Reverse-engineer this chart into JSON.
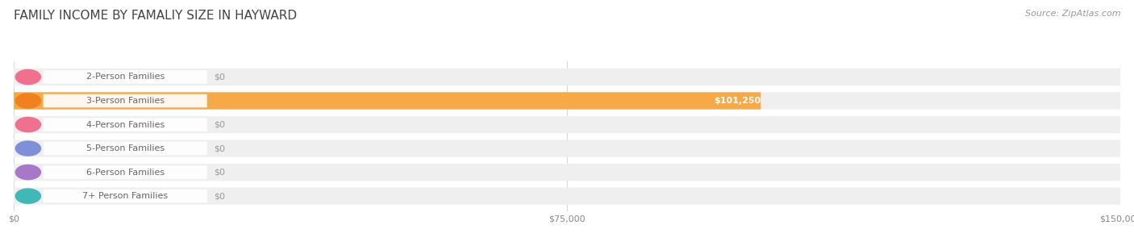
{
  "title": "FAMILY INCOME BY FAMALIY SIZE IN HAYWARD",
  "source": "Source: ZipAtlas.com",
  "categories": [
    "2-Person Families",
    "3-Person Families",
    "4-Person Families",
    "5-Person Families",
    "6-Person Families",
    "7+ Person Families"
  ],
  "values": [
    0,
    101250,
    0,
    0,
    0,
    0
  ],
  "bar_colors": [
    "#f7afc0",
    "#f5a947",
    "#f7afc0",
    "#b0bff0",
    "#ccb0e0",
    "#85d4d4"
  ],
  "icon_colors": [
    "#f07090",
    "#f08020",
    "#f07090",
    "#8090d8",
    "#a878c8",
    "#40b8b8"
  ],
  "xlim": [
    0,
    150000
  ],
  "xticks": [
    0,
    75000,
    150000
  ],
  "xtick_labels": [
    "$0",
    "$75,000",
    "$150,000"
  ],
  "background_color": "#ffffff",
  "bar_bg_color": "#efefef",
  "bar_bg_shadow_color": "#e0e0e0",
  "title_fontsize": 11,
  "source_fontsize": 8,
  "category_fontsize": 8,
  "value_fontsize": 8,
  "value_label_color": "#ffffff",
  "zero_label_color": "#999999",
  "category_label_color": "#666666",
  "grid_color": "#d8d8d8"
}
